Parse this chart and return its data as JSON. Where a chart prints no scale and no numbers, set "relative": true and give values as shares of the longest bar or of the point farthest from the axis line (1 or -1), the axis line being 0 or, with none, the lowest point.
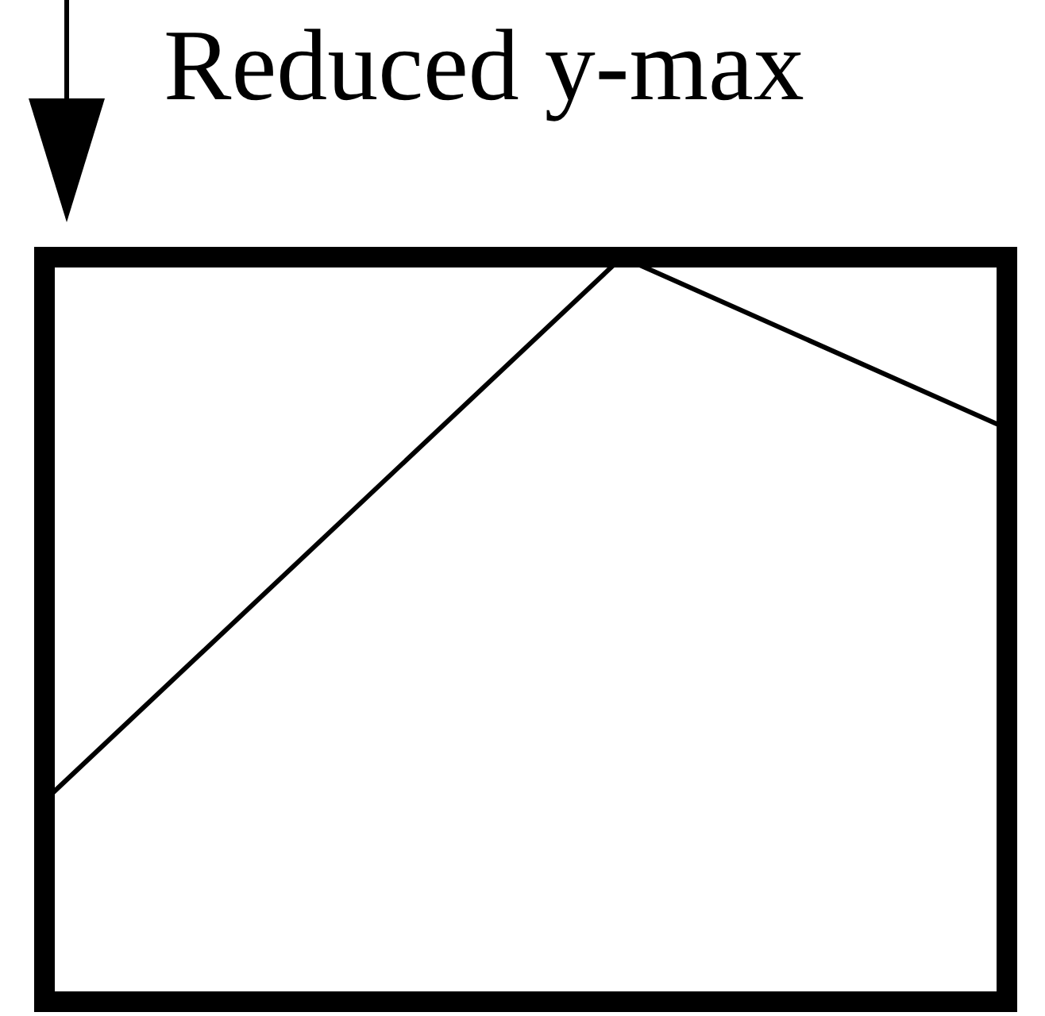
{
  "chart_data": {
    "type": "line",
    "title": "Reduced y-max",
    "relative": true,
    "categories": [
      null,
      null,
      null,
      null,
      null,
      null
    ],
    "values": [
      0.27,
      null,
      null,
      1,
      null,
      0.77
    ],
    "color": "#000000",
    "line_style": "solid"
  }
}
